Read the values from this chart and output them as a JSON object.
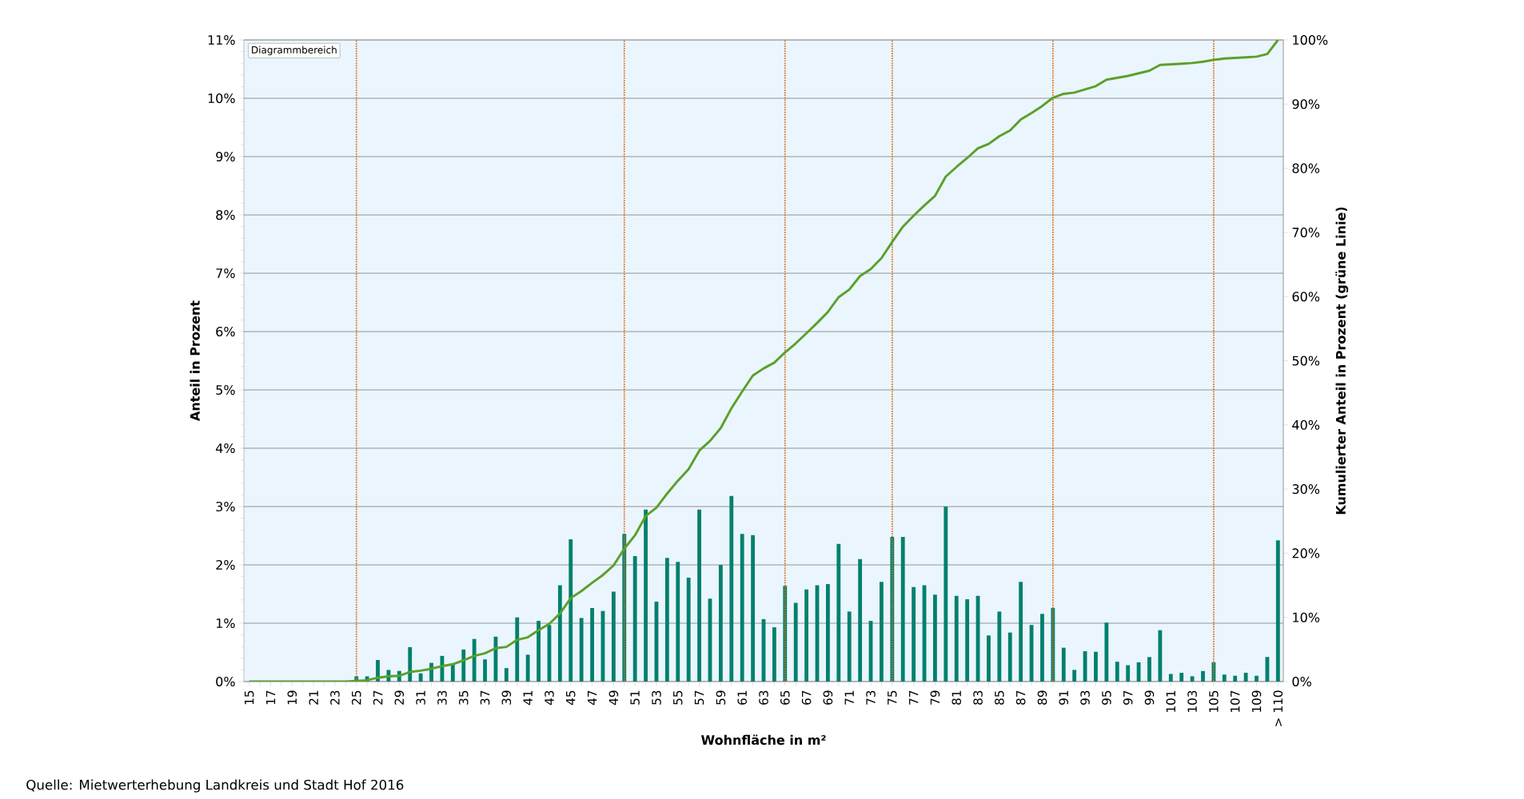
{
  "chart_data": {
    "type": "bar",
    "x": [
      15,
      16,
      17,
      18,
      19,
      20,
      21,
      22,
      23,
      24,
      25,
      26,
      27,
      28,
      29,
      30,
      31,
      32,
      33,
      34,
      35,
      36,
      37,
      38,
      39,
      40,
      41,
      42,
      43,
      44,
      45,
      46,
      47,
      48,
      49,
      50,
      51,
      52,
      53,
      54,
      55,
      56,
      57,
      58,
      59,
      60,
      61,
      62,
      63,
      64,
      65,
      66,
      67,
      68,
      69,
      70,
      71,
      72,
      73,
      74,
      75,
      76,
      77,
      78,
      79,
      80,
      81,
      82,
      83,
      84,
      85,
      86,
      87,
      88,
      89,
      90,
      91,
      92,
      93,
      94,
      95,
      96,
      97,
      98,
      99,
      100,
      101,
      102,
      103,
      104,
      105,
      106,
      107,
      108,
      109,
      110,
      111
    ],
    "xlim": [
      14.5,
      111.5
    ],
    "xticks": [
      15,
      {
        "value": 16,
        "label": null
      },
      17,
      {
        "value": 18,
        "label": null
      },
      19,
      {
        "value": 20,
        "label": null
      },
      21,
      {
        "value": 22,
        "label": null
      },
      23,
      {
        "value": 24,
        "label": null
      },
      25,
      {
        "value": 26,
        "label": null
      },
      27,
      {
        "value": 28,
        "label": null
      },
      29,
      {
        "value": 30,
        "label": null
      },
      31,
      {
        "value": 32,
        "label": null
      },
      33,
      {
        "value": 34,
        "label": null
      },
      35,
      {
        "value": 36,
        "label": null
      },
      37,
      {
        "value": 38,
        "label": null
      },
      39,
      {
        "value": 40,
        "label": null
      },
      41,
      {
        "value": 42,
        "label": null
      },
      43,
      {
        "value": 44,
        "label": null
      },
      45,
      {
        "value": 46,
        "label": null
      },
      47,
      {
        "value": 48,
        "label": null
      },
      49,
      {
        "value": 50,
        "label": null
      },
      51,
      {
        "value": 52,
        "label": null
      },
      53,
      {
        "value": 54,
        "label": null
      },
      55,
      {
        "value": 56,
        "label": null
      },
      57,
      {
        "value": 58,
        "label": null
      },
      59,
      {
        "value": 60,
        "label": null
      },
      61,
      {
        "value": 62,
        "label": null
      },
      63,
      {
        "value": 64,
        "label": null
      },
      65,
      {
        "value": 66,
        "label": null
      },
      67,
      {
        "value": 68,
        "label": null
      },
      69,
      {
        "value": 70,
        "label": null
      },
      71,
      {
        "value": 72,
        "label": null
      },
      73,
      {
        "value": 74,
        "label": null
      },
      75,
      {
        "value": 76,
        "label": null
      },
      77,
      {
        "value": 78,
        "label": null
      },
      79,
      {
        "value": 80,
        "label": null
      },
      81,
      {
        "value": 82,
        "label": null
      },
      83,
      {
        "value": 84,
        "label": null
      },
      85,
      {
        "value": 86,
        "label": null
      },
      87,
      {
        "value": 88,
        "label": null
      },
      89,
      {
        "value": 90,
        "label": null
      },
      91,
      {
        "value": 92,
        "label": null
      },
      93,
      {
        "value": 94,
        "label": null
      },
      95,
      {
        "value": 96,
        "label": null
      },
      97,
      {
        "value": 98,
        "label": null
      },
      99,
      {
        "value": 100,
        "label": null
      },
      101,
      {
        "value": 102,
        "label": null
      },
      103,
      {
        "value": 104,
        "label": null
      },
      105,
      {
        "value": 106,
        "label": null
      },
      107,
      {
        "value": 108,
        "label": null
      },
      109,
      {
        "value": 110,
        "label": null
      },
      {
        "value": 111,
        "label": "> 110"
      }
    ],
    "ylim": [
      0,
      11
    ],
    "yticks": [
      {
        "value": 0,
        "label": "0%"
      },
      {
        "value": 1,
        "label": "1%"
      },
      {
        "value": 2,
        "label": "2%"
      },
      {
        "value": 3,
        "label": "3%"
      },
      {
        "value": 4,
        "label": "4%"
      },
      {
        "value": 5,
        "label": "5%"
      },
      {
        "value": 6,
        "label": "6%"
      },
      {
        "value": 7,
        "label": "7%"
      },
      {
        "value": 8,
        "label": "8%"
      },
      {
        "value": 9,
        "label": "9%"
      },
      {
        "value": 10,
        "label": "10%"
      },
      {
        "value": 11,
        "label": "11%"
      }
    ],
    "y2lim": [
      0,
      100
    ],
    "y2ticks": [
      {
        "value": 0,
        "label": "0%"
      },
      {
        "value": 10,
        "label": "10%"
      },
      {
        "value": 20,
        "label": "20%"
      },
      {
        "value": 30,
        "label": "30%"
      },
      {
        "value": 40,
        "label": "40%"
      },
      {
        "value": 50,
        "label": "50%"
      },
      {
        "value": 60,
        "label": "60%"
      },
      {
        "value": 70,
        "label": "70%"
      },
      {
        "value": 80,
        "label": "80%"
      },
      {
        "value": 90,
        "label": "90%"
      },
      {
        "value": 100,
        "label": "100%"
      }
    ],
    "xlabel": "Wohnfläche in m²",
    "ylabel": "Anteil in Prozent",
    "y2label": "Kumulierter Anteil in Prozent (grüne Linie)",
    "grid": "y",
    "marker": "none",
    "ref_lines": [
      {
        "axis": "x",
        "value": 25,
        "color": "#d9731a",
        "line_style": "dotted"
      },
      {
        "axis": "x",
        "value": 50,
        "color": "#d9731a",
        "line_style": "dotted"
      },
      {
        "axis": "x",
        "value": 65,
        "color": "#d9731a",
        "line_style": "dotted"
      },
      {
        "axis": "x",
        "value": 75,
        "color": "#d9731a",
        "line_style": "dotted"
      },
      {
        "axis": "x",
        "value": 90,
        "color": "#d9731a",
        "line_style": "dotted"
      },
      {
        "axis": "x",
        "value": 105,
        "color": "#d9731a",
        "line_style": "dotted"
      }
    ],
    "annotations": [
      "Diagrammbereich",
      "Quelle: Mietwerterhebung Landkreis und Stadt Hof 2016"
    ],
    "series": [
      {
        "color": "#00806e",
        "values": [
          0,
          0,
          0,
          0,
          0,
          0,
          0,
          0,
          0,
          0,
          0.09,
          0.09,
          0.37,
          0.2,
          0.18,
          0.59,
          0.14,
          0.32,
          0.44,
          0.3,
          0.55,
          0.73,
          0.38,
          0.77,
          0.23,
          1.1,
          0.46,
          1.04,
          0.97,
          1.65,
          2.44,
          1.09,
          1.26,
          1.21,
          1.54,
          2.53,
          2.15,
          2.95,
          1.37,
          2.12,
          2.05,
          1.78,
          2.95,
          1.42,
          2.0,
          3.18,
          2.53,
          2.51,
          1.07,
          0.93,
          1.64,
          1.35,
          1.58,
          1.65,
          1.67,
          2.36,
          1.2,
          2.1,
          1.04,
          1.71,
          2.48,
          2.48,
          1.62,
          1.65,
          1.49,
          3.0,
          1.47,
          1.41,
          1.47,
          0.79,
          1.2,
          0.84,
          1.71,
          0.97,
          1.16,
          1.26,
          0.58,
          0.2,
          0.52,
          0.51,
          1.01,
          0.34,
          0.28,
          0.33,
          0.42,
          0.88,
          0.13,
          0.15,
          0.09,
          0.18,
          0.33,
          0.12,
          0.1,
          0.15,
          0.1,
          0.42,
          2.42
        ]
      },
      {
        "type": "line",
        "axis": "y2",
        "color": "#5aa02c",
        "values": [
          0,
          0,
          0,
          0,
          0,
          0,
          0,
          0,
          0,
          0,
          0.1,
          0.2,
          0.6,
          0.8,
          0.9,
          1.5,
          1.7,
          2.0,
          2.4,
          2.7,
          3.3,
          4.0,
          4.4,
          5.2,
          5.4,
          6.5,
          6.9,
          8.0,
          9.0,
          10.6,
          13.0,
          14.1,
          15.4,
          16.6,
          18.1,
          20.7,
          22.8,
          25.8,
          27.1,
          29.3,
          31.3,
          33.1,
          36.0,
          37.5,
          39.5,
          42.6,
          45.2,
          47.7,
          48.8,
          49.7,
          51.3,
          52.7,
          54.3,
          55.9,
          57.6,
          59.9,
          61.1,
          63.2,
          64.3,
          66.0,
          68.5,
          70.9,
          72.6,
          74.2,
          75.7,
          78.7,
          80.2,
          81.6,
          83.1,
          83.8,
          85.0,
          85.9,
          87.6,
          88.6,
          89.7,
          91.0,
          91.6,
          91.8,
          92.3,
          92.8,
          93.8,
          94.1,
          94.4,
          94.8,
          95.2,
          96.1,
          96.2,
          96.3,
          96.4,
          96.6,
          96.9,
          97.1,
          97.2,
          97.3,
          97.4,
          97.8,
          100
        ]
      }
    ]
  }
}
